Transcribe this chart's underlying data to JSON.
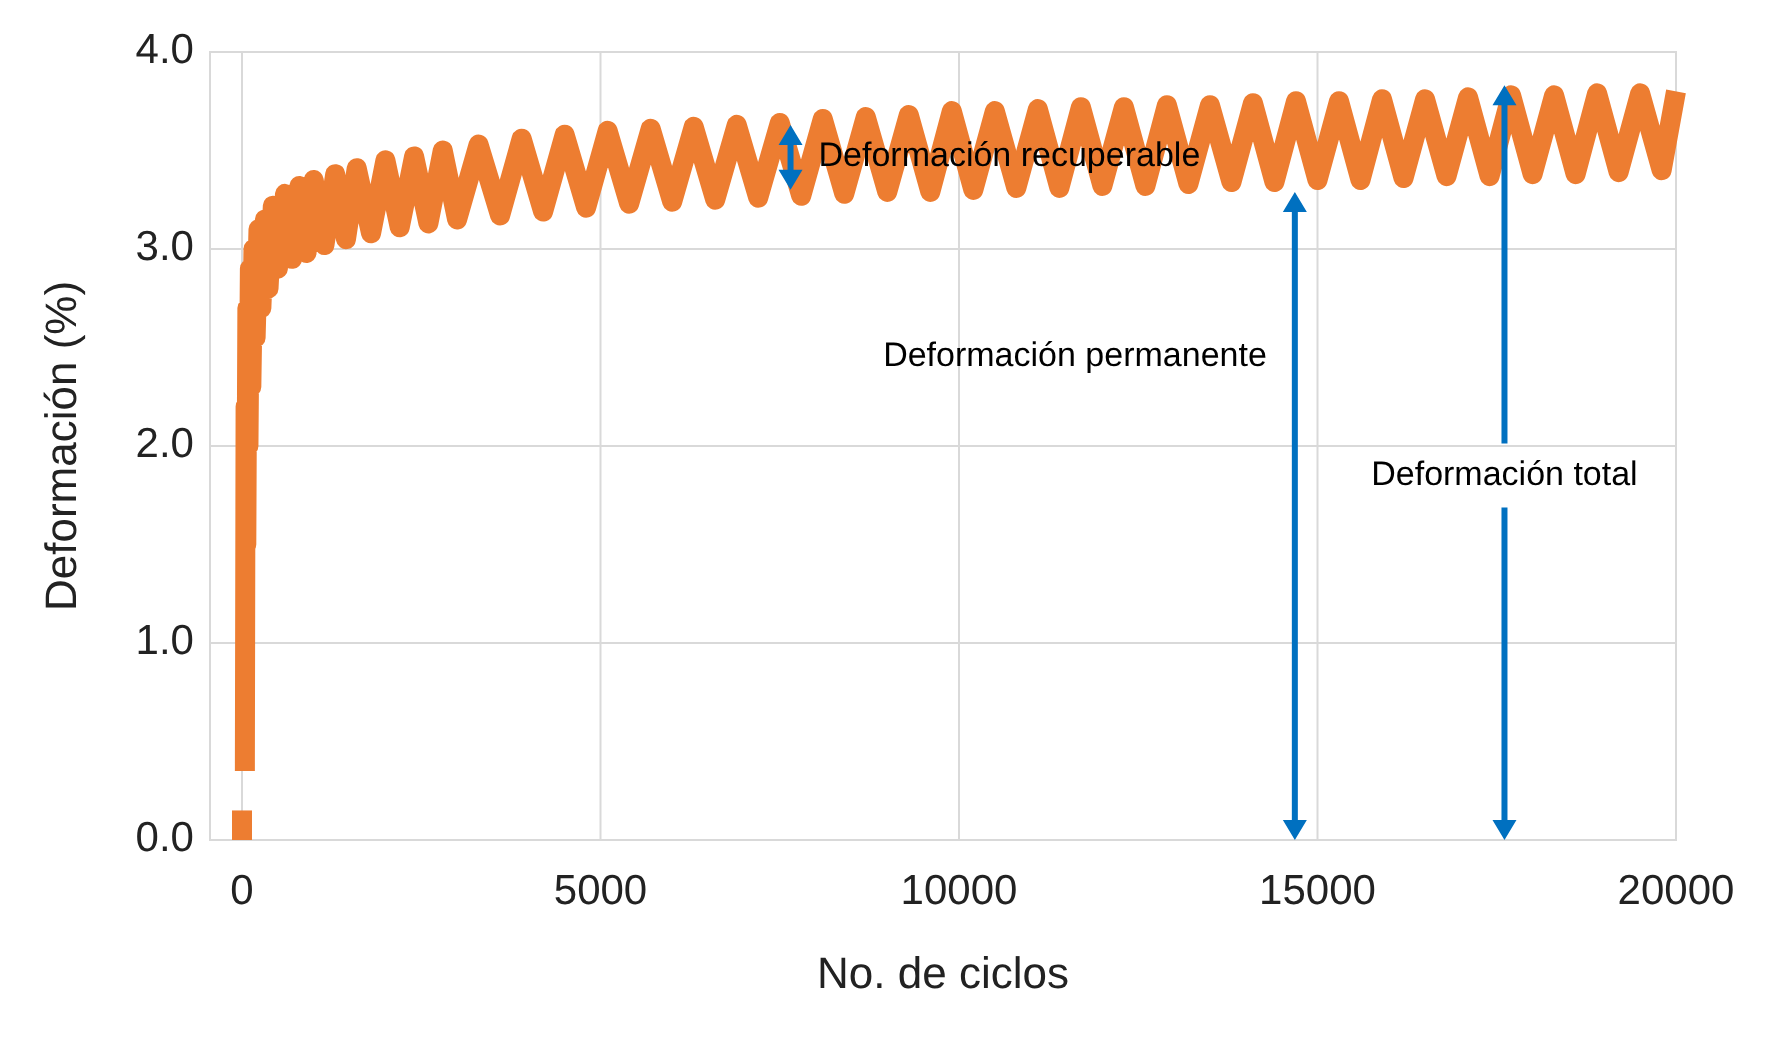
{
  "chart_data": {
    "type": "line",
    "xlabel": "No. de ciclos",
    "ylabel": "Deformación (%)",
    "xlim": [
      0,
      20000
    ],
    "xticks": [
      0,
      5000,
      10000,
      15000,
      20000
    ],
    "ylim": [
      0,
      4
    ],
    "yticks": [
      {
        "value": 0,
        "label": "0.0"
      },
      {
        "value": 1,
        "label": "1.0"
      },
      {
        "value": 2,
        "label": "2.0"
      },
      {
        "value": 3,
        "label": "3.0"
      },
      {
        "value": 4,
        "label": "4.0"
      }
    ],
    "grid": true,
    "marker": "none",
    "line_style": "solid",
    "series": [
      {
        "color": "#ed7d31",
        "x": [
          0,
          0
        ],
        "values": [
          0,
          0.15
        ]
      },
      {
        "color": "#ed7d31",
        "x": [
          40,
          50,
          60,
          75,
          90,
          110,
          130,
          160,
          190,
          230,
          270,
          320,
          370,
          430,
          500,
          600,
          700,
          800,
          900,
          1000,
          1150,
          1300,
          1450,
          1600,
          1800,
          2000,
          2200,
          2400,
          2600,
          2800,
          3000,
          3300,
          3600,
          3900,
          4200,
          4500,
          4800,
          5100,
          5400,
          5700,
          6000,
          6300,
          6600,
          6900,
          7200,
          7500,
          7800,
          8100,
          8400,
          8700,
          9000,
          9300,
          9600,
          9900,
          10200,
          10500,
          10800,
          11100,
          11400,
          11700,
          12000,
          12300,
          12600,
          12900,
          13200,
          13500,
          13800,
          14100,
          14400,
          14700,
          15000,
          15300,
          15600,
          15900,
          16200,
          16500,
          16800,
          17100,
          17400,
          17700,
          18000,
          18300,
          18600,
          18900,
          19200,
          19500,
          19800,
          20000
        ],
        "values": [
          0.35,
          2.2,
          1.5,
          2.7,
          2.0,
          2.9,
          2.3,
          3.0,
          2.55,
          3.1,
          2.7,
          3.15,
          2.8,
          3.22,
          2.9,
          3.28,
          2.95,
          3.32,
          2.98,
          3.35,
          3.02,
          3.38,
          3.05,
          3.41,
          3.08,
          3.45,
          3.11,
          3.47,
          3.13,
          3.5,
          3.15,
          3.53,
          3.17,
          3.56,
          3.19,
          3.58,
          3.21,
          3.6,
          3.23,
          3.61,
          3.24,
          3.62,
          3.25,
          3.63,
          3.26,
          3.64,
          3.27,
          3.66,
          3.28,
          3.67,
          3.29,
          3.68,
          3.29,
          3.7,
          3.3,
          3.7,
          3.31,
          3.71,
          3.31,
          3.72,
          3.32,
          3.72,
          3.32,
          3.73,
          3.33,
          3.73,
          3.34,
          3.74,
          3.34,
          3.75,
          3.35,
          3.75,
          3.35,
          3.76,
          3.36,
          3.76,
          3.37,
          3.77,
          3.37,
          3.78,
          3.38,
          3.78,
          3.38,
          3.79,
          3.39,
          3.79,
          3.4,
          3.8
        ]
      }
    ],
    "annotations": [
      "Deformación recuperable",
      "Deformación permanente",
      "Deformación total"
    ]
  }
}
